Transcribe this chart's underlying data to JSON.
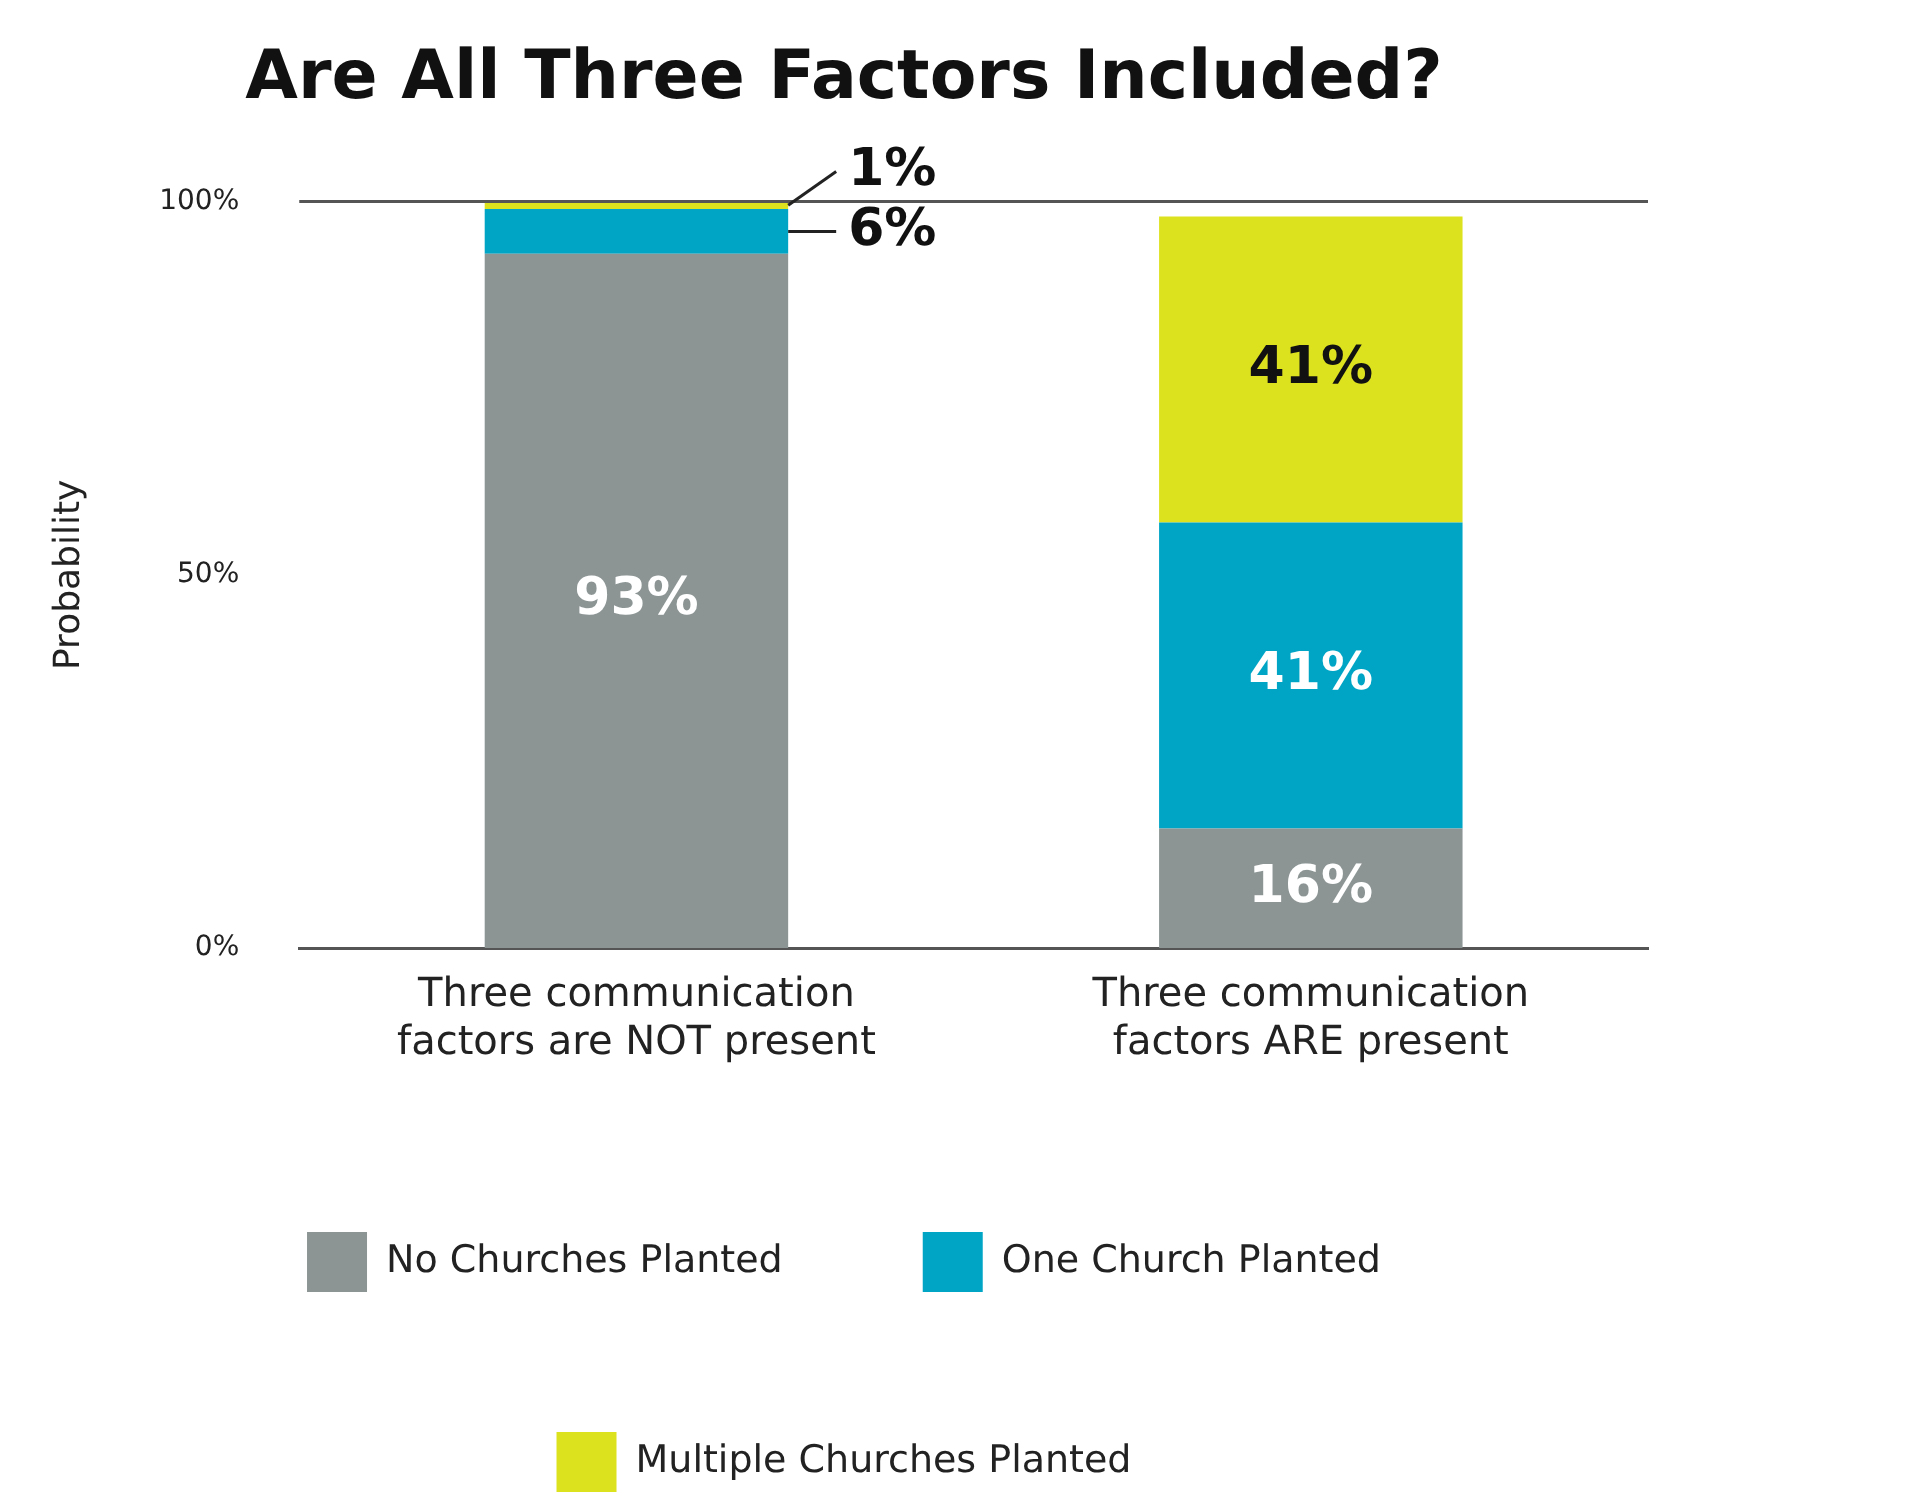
{
  "chart_data": {
    "type": "bar",
    "title": "Are All Three Factors Included?",
    "ylabel": "Probability",
    "stacked": true,
    "categories": [
      "Three communication factors are NOT present",
      "Three communication factors ARE present"
    ],
    "series": [
      {
        "name": "No Churches Planted",
        "color": "#8c9494",
        "values": [
          93,
          16
        ],
        "value_labels": [
          "93%",
          "16%"
        ]
      },
      {
        "name": "One Church Planted",
        "color": "#00a5c6",
        "values": [
          6,
          41
        ],
        "value_labels": [
          "6%",
          "41%"
        ]
      },
      {
        "name": "Multiple Churches Planted",
        "color": "#dde21f",
        "values": [
          1,
          41
        ],
        "value_labels": [
          "1%",
          "41%"
        ]
      }
    ],
    "ylim": [
      0,
      100
    ],
    "yticks": [
      {
        "value": 0,
        "label": "0%"
      },
      {
        "value": 50,
        "label": "50%"
      },
      {
        "value": 100,
        "label": "100%"
      }
    ],
    "ref_lines": [
      {
        "axis": "y",
        "value": 100,
        "color": "#555555"
      }
    ],
    "grid": false,
    "legend": "bottom"
  }
}
